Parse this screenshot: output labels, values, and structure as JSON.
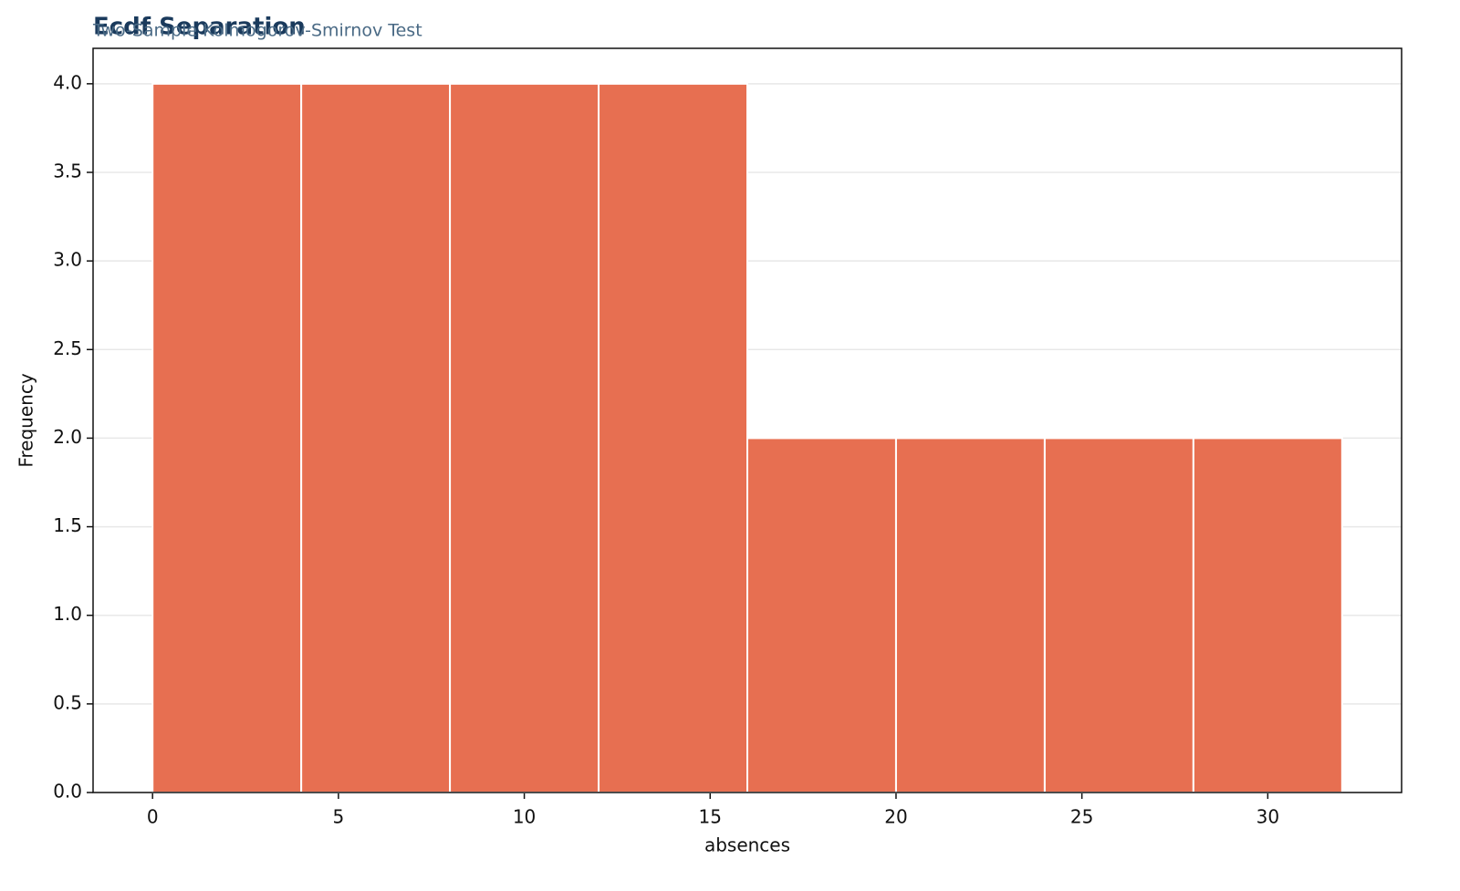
{
  "chart_data": {
    "type": "histogram",
    "title": "Ecdf Separation",
    "subtitle": "Two-Sample Kolmogorov-Smirnov Test",
    "x_label": "absences",
    "y_label": "Frequency",
    "bins": [
      0,
      4,
      8,
      12,
      16,
      20,
      24,
      28,
      32
    ],
    "values": [
      4,
      4,
      4,
      4,
      2,
      2,
      2,
      2
    ],
    "color": "#e76f51",
    "xlim": [
      -1.6,
      33.6
    ],
    "xticks": [
      0,
      5,
      10,
      15,
      20,
      25,
      30
    ],
    "ylim": [
      0,
      4.2
    ],
    "yticks": [
      {
        "value": 0,
        "label": "0.0"
      },
      {
        "value": 0.5,
        "label": "0.5"
      },
      {
        "value": 1,
        "label": "1.0"
      },
      {
        "value": 1.5,
        "label": "1.5"
      },
      {
        "value": 2,
        "label": "2.0"
      },
      {
        "value": 2.5,
        "label": "2.5"
      },
      {
        "value": 3,
        "label": "3.0"
      },
      {
        "value": 3.5,
        "label": "3.5"
      },
      {
        "value": 4,
        "label": "4.0"
      }
    ],
    "grid": true
  }
}
